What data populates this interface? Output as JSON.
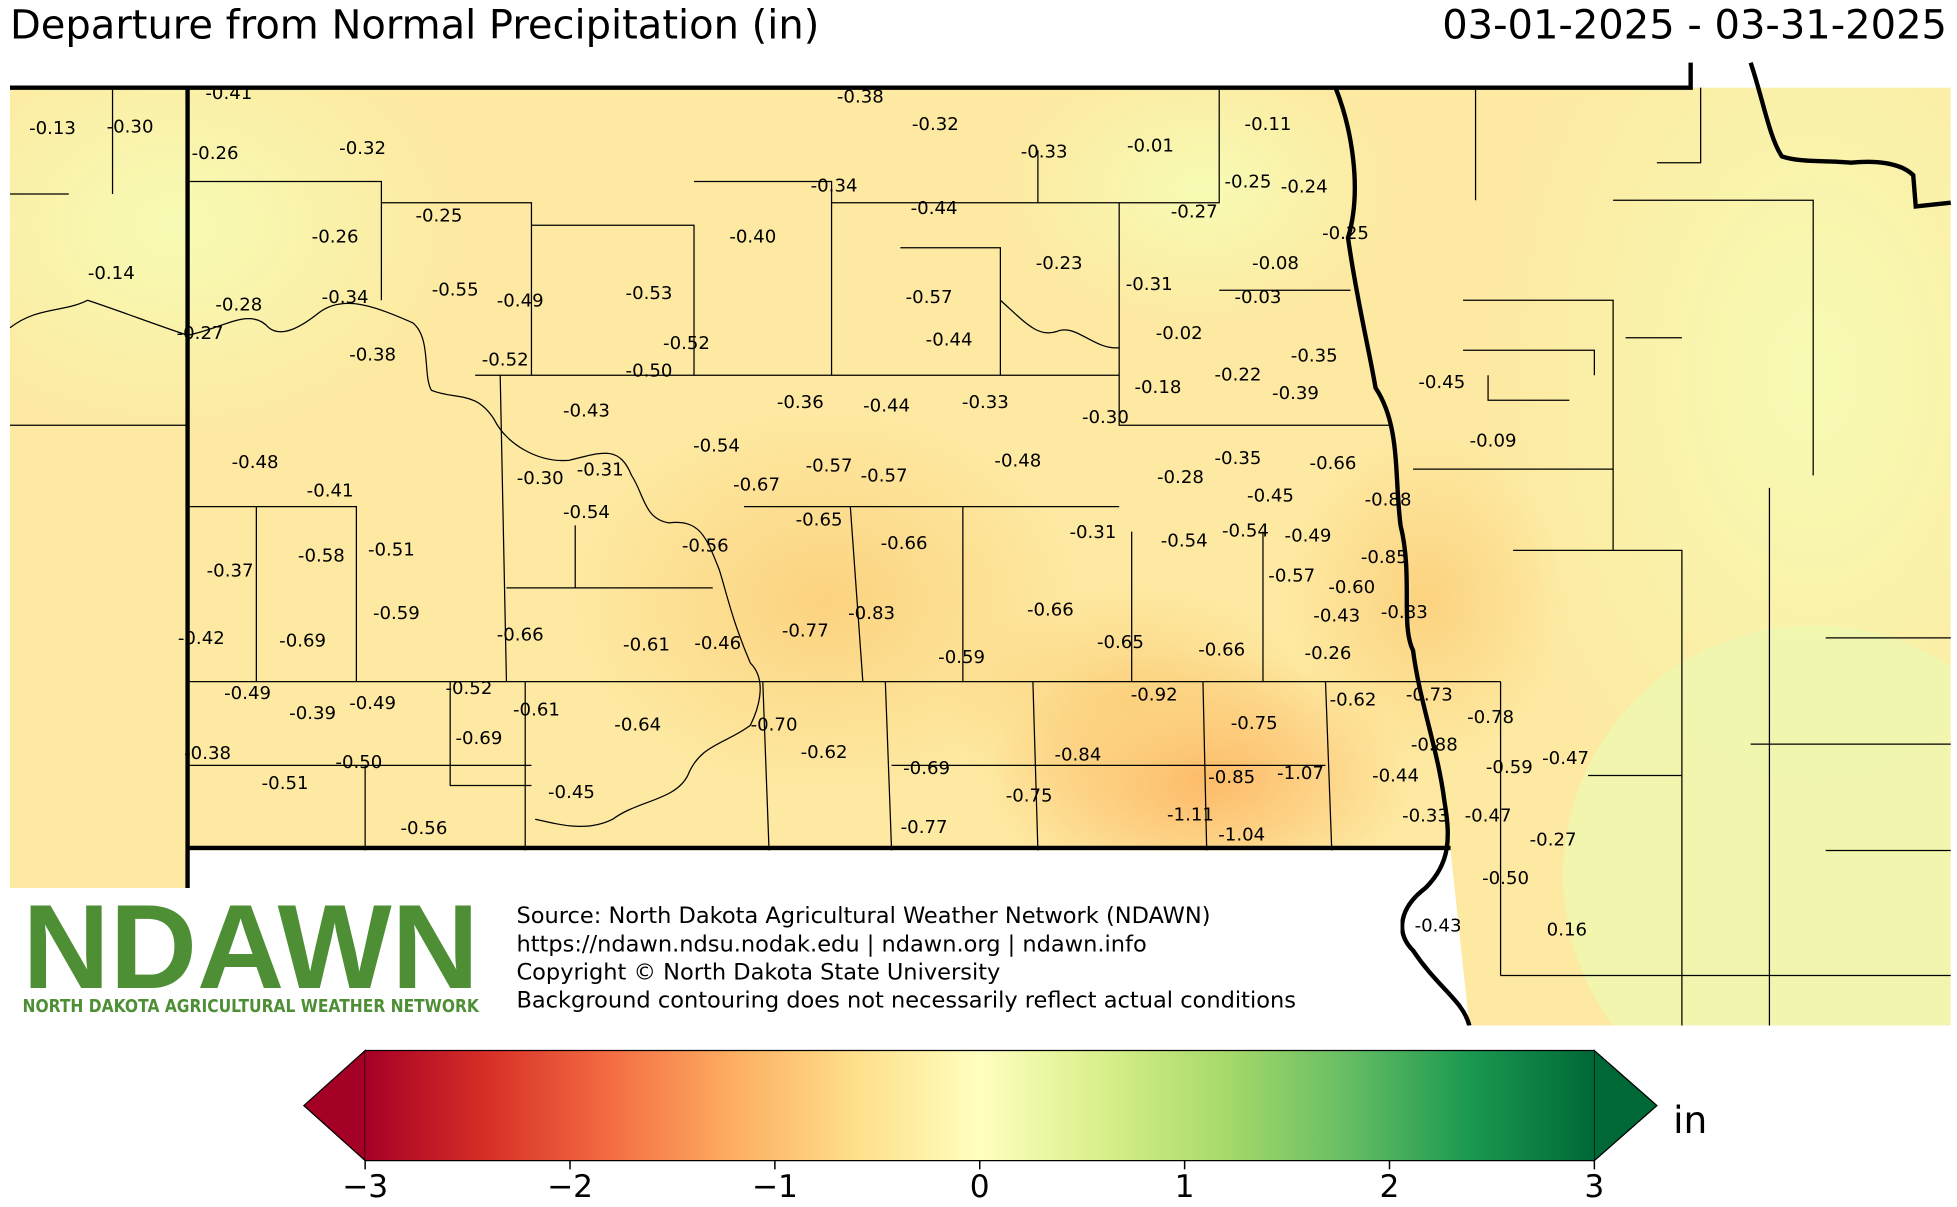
{
  "title": "Departure from Normal Precipitation (in)",
  "date_range": "03-01-2025 - 03-31-2025",
  "logo": {
    "name": "NDAWN",
    "subtitle": "NORTH DAKOTA AGRICULTURAL WEATHER NETWORK"
  },
  "source_lines": [
    "Source: North Dakota Agricultural Weather Network (NDAWN)",
    "https://ndawn.ndsu.nodak.edu | ndawn.org | ndawn.info",
    "Copyright © North Dakota State University",
    "Background contouring does not necessarily reflect actual conditions"
  ],
  "stations": [
    "-0.13",
    "-0.30",
    "-0.41",
    "-0.26",
    "-0.32",
    "-0.38",
    "-0.32",
    "-0.33",
    "-0.01",
    "-0.11",
    "-0.34",
    "-0.44",
    "-0.25",
    "-0.24",
    "-0.25",
    "-0.26",
    "-0.40",
    "-0.27",
    "-0.25",
    "-0.14",
    "-0.23",
    "-0.08",
    "-0.28",
    "-0.34",
    "-0.55",
    "-0.49",
    "-0.53",
    "-0.57",
    "-0.31",
    "-0.03",
    "-0.27",
    "-0.52",
    "-0.44",
    "-0.02",
    "-0.38",
    "-0.52",
    "-0.35",
    "-0.50",
    "-0.22",
    "-0.18",
    "-0.39",
    "-0.45",
    "-0.43",
    "-0.36",
    "-0.44",
    "-0.33",
    "-0.30",
    "-0.09",
    "-0.54",
    "-0.35",
    "-0.66",
    "-0.48",
    "-0.48",
    "-0.30",
    "-0.31",
    "-0.57",
    "-0.57",
    "-0.67",
    "-0.28",
    "-0.41",
    "-0.45",
    "-0.88",
    "-0.54",
    "-0.65",
    "-0.31",
    "-0.54",
    "-0.54",
    "-0.49",
    "-0.56",
    "-0.66",
    "-0.58",
    "-0.51",
    "-0.85",
    "-0.37",
    "-0.57",
    "-0.60",
    "-0.43",
    "-0.83",
    "-0.59",
    "-0.83",
    "-0.66",
    "-0.77",
    "-0.42",
    "-0.69",
    "-0.66",
    "-0.61",
    "-0.46",
    "-0.65",
    "-0.66",
    "-0.26",
    "-0.59",
    "-0.49",
    "-0.52",
    "-0.92",
    "-0.75",
    "-0.62",
    "-0.73",
    "-0.39",
    "-0.49",
    "-0.61",
    "-0.64",
    "-0.70",
    "-0.78",
    "-0.69",
    "-0.88",
    "-0.38",
    "-0.62",
    "-0.84",
    "-0.47",
    "-0.50",
    "-0.69",
    "-0.59",
    "-0.85",
    "-1.07",
    "-0.44",
    "-0.51",
    "-0.45",
    "-0.75",
    "-1.11",
    "-0.33",
    "-0.47",
    "-0.77",
    "-0.56",
    "-1.04",
    "-0.27",
    "-0.50",
    "-0.43",
    "0.16"
  ],
  "colorbar": {
    "unit": "in",
    "range": [
      -3,
      3
    ],
    "ticks": [
      {
        "value": -3,
        "label": "−3"
      },
      {
        "value": -2,
        "label": "−2"
      },
      {
        "value": -1,
        "label": "−1"
      },
      0,
      1,
      2,
      3
    ],
    "colors": [
      "#a50026",
      "#d73027",
      "#f46d43",
      "#fdae61",
      "#fee08b",
      "#ffffbf",
      "#d9ef8b",
      "#a6d96a",
      "#66bd63",
      "#1a9850",
      "#006837"
    ]
  }
}
